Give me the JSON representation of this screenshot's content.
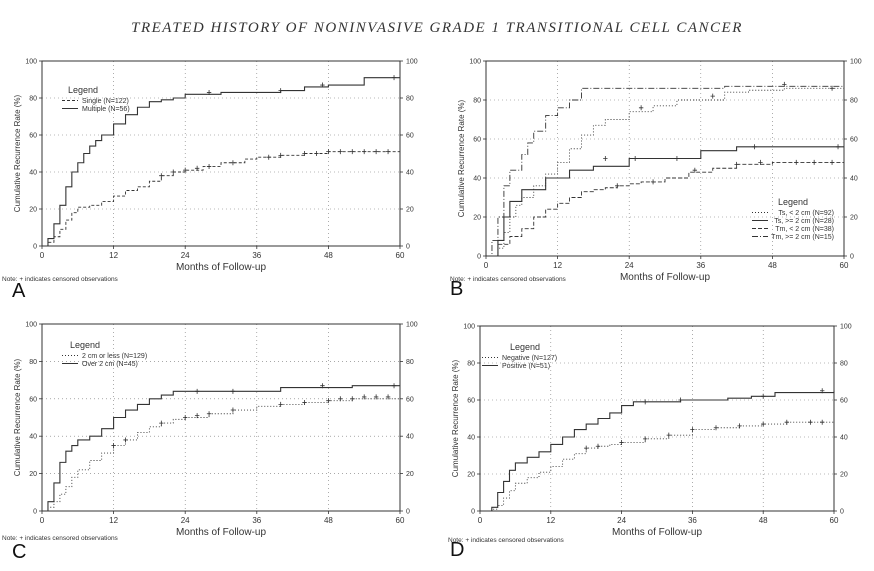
{
  "title": "TREATED HISTORY OF NONINVASIVE GRADE 1 TRANSITIONAL CELL CANCER",
  "colors": {
    "ink": "#333333",
    "grid": "#777777"
  },
  "chart_data": [
    {
      "id": "A",
      "panel_label": "A",
      "type": "line",
      "ylabel": "Cumulative Recurrence Rate (%)",
      "xlabel": "Months of Follow-up",
      "xlim": [
        0,
        60
      ],
      "ylim": [
        0,
        100
      ],
      "xticks": [
        0,
        12,
        24,
        36,
        48,
        60
      ],
      "yticks": [
        0,
        20,
        40,
        60,
        80,
        100
      ],
      "legend_title": "Legend",
      "legend_position": "top-left",
      "note": "Note: + indicates censored observations",
      "series": [
        {
          "name": "Single (N=122)",
          "dash": "3,2",
          "x": [
            0,
            1,
            2,
            3,
            4,
            5,
            6,
            8,
            10,
            12,
            14,
            16,
            18,
            20,
            22,
            24,
            27,
            30,
            34,
            36,
            40,
            44,
            48,
            60
          ],
          "y": [
            0,
            2,
            5,
            9,
            14,
            18,
            21,
            22,
            24,
            27,
            30,
            32,
            35,
            38,
            40,
            41,
            43,
            45,
            47,
            48,
            49,
            50,
            51,
            51
          ],
          "censored": [
            [
              20,
              38
            ],
            [
              22,
              40
            ],
            [
              24,
              41
            ],
            [
              26,
              42
            ],
            [
              28,
              43
            ],
            [
              32,
              45
            ],
            [
              38,
              48
            ],
            [
              40,
              49
            ],
            [
              44,
              50
            ],
            [
              46,
              50
            ],
            [
              48,
              51
            ],
            [
              50,
              51
            ],
            [
              52,
              51
            ],
            [
              54,
              51
            ],
            [
              56,
              51
            ],
            [
              58,
              51
            ]
          ]
        },
        {
          "name": "Multiple (N=56)",
          "dash": "",
          "x": [
            0,
            1,
            2,
            3,
            4,
            5,
            6,
            7,
            8,
            9,
            10,
            12,
            14,
            16,
            18,
            20,
            22,
            24,
            30,
            36,
            40,
            44,
            48,
            54,
            60
          ],
          "y": [
            0,
            4,
            12,
            22,
            32,
            40,
            45,
            50,
            54,
            57,
            60,
            66,
            71,
            75,
            78,
            79,
            80,
            82,
            83,
            83,
            84,
            86,
            87,
            91,
            91
          ],
          "censored": [
            [
              28,
              83
            ],
            [
              40,
              84
            ],
            [
              47,
              87
            ],
            [
              59,
              91
            ]
          ]
        }
      ]
    },
    {
      "id": "B",
      "panel_label": "B",
      "type": "line",
      "ylabel": "Cumulative Recurrence Rate (%)",
      "xlabel": "Months of Follow-up",
      "xlim": [
        0,
        60
      ],
      "ylim": [
        0,
        100
      ],
      "xticks": [
        0,
        12,
        24,
        36,
        48,
        60
      ],
      "yticks": [
        0,
        20,
        40,
        60,
        80,
        100
      ],
      "legend_title": "Legend",
      "legend_position": "bottom-right",
      "note": "Note: + indicates censored observations",
      "series": [
        {
          "name": "Ts, < 2 cm (N=92)",
          "dash": "1,2",
          "x": [
            0,
            2,
            3,
            4,
            5,
            6,
            8,
            10,
            12,
            14,
            16,
            18,
            20,
            24,
            28,
            32,
            36,
            40,
            44,
            50,
            60
          ],
          "y": [
            0,
            4,
            12,
            20,
            26,
            30,
            36,
            42,
            48,
            55,
            62,
            67,
            70,
            74,
            77,
            80,
            80,
            84,
            85,
            86,
            86
          ],
          "censored": [
            [
              26,
              76
            ],
            [
              38,
              82
            ],
            [
              58,
              86
            ]
          ]
        },
        {
          "name": "Ts, >= 2 cm (N=28)",
          "dash": "",
          "x": [
            0,
            2,
            3,
            4,
            6,
            10,
            14,
            18,
            24,
            28,
            32,
            36,
            42,
            50,
            60
          ],
          "y": [
            0,
            8,
            20,
            28,
            34,
            40,
            44,
            46,
            50,
            50,
            50,
            54,
            56,
            56,
            56
          ],
          "censored": [
            [
              20,
              50
            ],
            [
              25,
              50
            ],
            [
              32,
              50
            ],
            [
              45,
              56
            ],
            [
              59,
              56
            ]
          ]
        },
        {
          "name": "Tm, < 2 cm (N=38)",
          "dash": "4,2",
          "x": [
            0,
            2,
            4,
            6,
            8,
            10,
            12,
            14,
            16,
            18,
            20,
            22,
            24,
            26,
            30,
            34,
            38,
            42,
            48,
            60
          ],
          "y": [
            0,
            6,
            10,
            14,
            20,
            24,
            27,
            30,
            33,
            34,
            35,
            36,
            37,
            38,
            40,
            43,
            45,
            47,
            48,
            48
          ],
          "censored": [
            [
              22,
              36
            ],
            [
              28,
              38
            ],
            [
              35,
              44
            ],
            [
              42,
              47
            ],
            [
              46,
              48
            ],
            [
              52,
              48
            ],
            [
              55,
              48
            ],
            [
              58,
              48
            ]
          ]
        },
        {
          "name": "Tm, >= 2 cm (N=15)",
          "dash": "6,2,1,2",
          "x": [
            0,
            1,
            2,
            3,
            4,
            6,
            7,
            8,
            10,
            12,
            14,
            16,
            20,
            24,
            36,
            40,
            60
          ],
          "y": [
            0,
            8,
            20,
            36,
            44,
            52,
            58,
            64,
            72,
            76,
            80,
            86,
            86,
            86,
            86,
            87,
            90
          ],
          "censored": [
            [
              50,
              88
            ]
          ]
        }
      ]
    },
    {
      "id": "C",
      "panel_label": "C",
      "type": "line",
      "ylabel": "Cumulative Recurrence Rate (%)",
      "xlabel": "Months of Follow-up",
      "xlim": [
        0,
        60
      ],
      "ylim": [
        0,
        100
      ],
      "xticks": [
        0,
        12,
        24,
        36,
        48,
        60
      ],
      "yticks": [
        0,
        20,
        40,
        60,
        80,
        100
      ],
      "legend_title": "Legend",
      "legend_position": "top-left",
      "note": "Note: + indicates censored observations",
      "series": [
        {
          "name": "2 cm or less (N=129)",
          "dash": "1,2",
          "x": [
            0,
            1,
            2,
            3,
            4,
            5,
            6,
            8,
            10,
            12,
            14,
            16,
            18,
            20,
            22,
            24,
            28,
            32,
            36,
            40,
            44,
            48,
            52,
            60
          ],
          "y": [
            0,
            2,
            5,
            9,
            13,
            18,
            22,
            27,
            31,
            35,
            38,
            42,
            45,
            47,
            49,
            50,
            52,
            54,
            56,
            57,
            58,
            59,
            60,
            61
          ],
          "censored": [
            [
              12,
              35
            ],
            [
              14,
              38
            ],
            [
              20,
              47
            ],
            [
              24,
              50
            ],
            [
              26,
              51
            ],
            [
              28,
              52
            ],
            [
              32,
              54
            ],
            [
              40,
              57
            ],
            [
              44,
              58
            ],
            [
              48,
              59
            ],
            [
              50,
              60
            ],
            [
              52,
              60
            ],
            [
              54,
              61
            ],
            [
              56,
              61
            ],
            [
              58,
              61
            ]
          ]
        },
        {
          "name": "Over 2 cm (N=45)",
          "dash": "",
          "x": [
            0,
            1,
            2,
            3,
            4,
            5,
            6,
            8,
            10,
            12,
            14,
            16,
            18,
            20,
            22,
            30,
            36,
            40,
            44,
            48,
            52,
            60
          ],
          "y": [
            0,
            5,
            15,
            26,
            32,
            35,
            38,
            40,
            44,
            50,
            54,
            57,
            60,
            62,
            64,
            64,
            64,
            66,
            66,
            66,
            67,
            67
          ],
          "censored": [
            [
              26,
              64
            ],
            [
              32,
              64
            ],
            [
              47,
              67
            ],
            [
              59,
              67
            ]
          ]
        }
      ]
    },
    {
      "id": "D",
      "panel_label": "D",
      "type": "line",
      "ylabel": "Cumulative Recurrence Rate (%)",
      "xlabel": "Months of Follow-up",
      "xlim": [
        0,
        60
      ],
      "ylim": [
        0,
        100
      ],
      "xticks": [
        0,
        12,
        24,
        36,
        48,
        60
      ],
      "yticks": [
        0,
        20,
        40,
        60,
        80,
        100
      ],
      "legend_title": "Legend",
      "legend_position": "top-left",
      "note": "Note: + indicates censored observations",
      "series": [
        {
          "name": "Negative (N=127)",
          "dash": "1,2",
          "x": [
            0,
            2,
            3,
            4,
            5,
            6,
            8,
            10,
            12,
            14,
            16,
            18,
            20,
            22,
            24,
            28,
            32,
            36,
            40,
            44,
            48,
            52,
            60
          ],
          "y": [
            0,
            1,
            3,
            7,
            11,
            15,
            18,
            21,
            24,
            28,
            31,
            34,
            35,
            36,
            37,
            39,
            41,
            44,
            45,
            46,
            47,
            48,
            48
          ],
          "censored": [
            [
              18,
              34
            ],
            [
              20,
              35
            ],
            [
              24,
              37
            ],
            [
              28,
              39
            ],
            [
              32,
              41
            ],
            [
              36,
              44
            ],
            [
              40,
              45
            ],
            [
              44,
              46
            ],
            [
              48,
              47
            ],
            [
              52,
              48
            ],
            [
              56,
              48
            ],
            [
              58,
              48
            ]
          ]
        },
        {
          "name": "Positive (N=51)",
          "dash": "",
          "x": [
            0,
            2,
            3,
            4,
            5,
            6,
            8,
            10,
            12,
            14,
            16,
            18,
            20,
            22,
            24,
            26,
            30,
            34,
            38,
            42,
            46,
            50,
            60
          ],
          "y": [
            0,
            2,
            10,
            16,
            22,
            26,
            29,
            32,
            36,
            40,
            44,
            47,
            50,
            53,
            57,
            59,
            59,
            60,
            60,
            61,
            62,
            64,
            65
          ],
          "censored": [
            [
              28,
              59
            ],
            [
              34,
              60
            ],
            [
              48,
              62
            ],
            [
              58,
              65
            ]
          ]
        }
      ]
    }
  ]
}
